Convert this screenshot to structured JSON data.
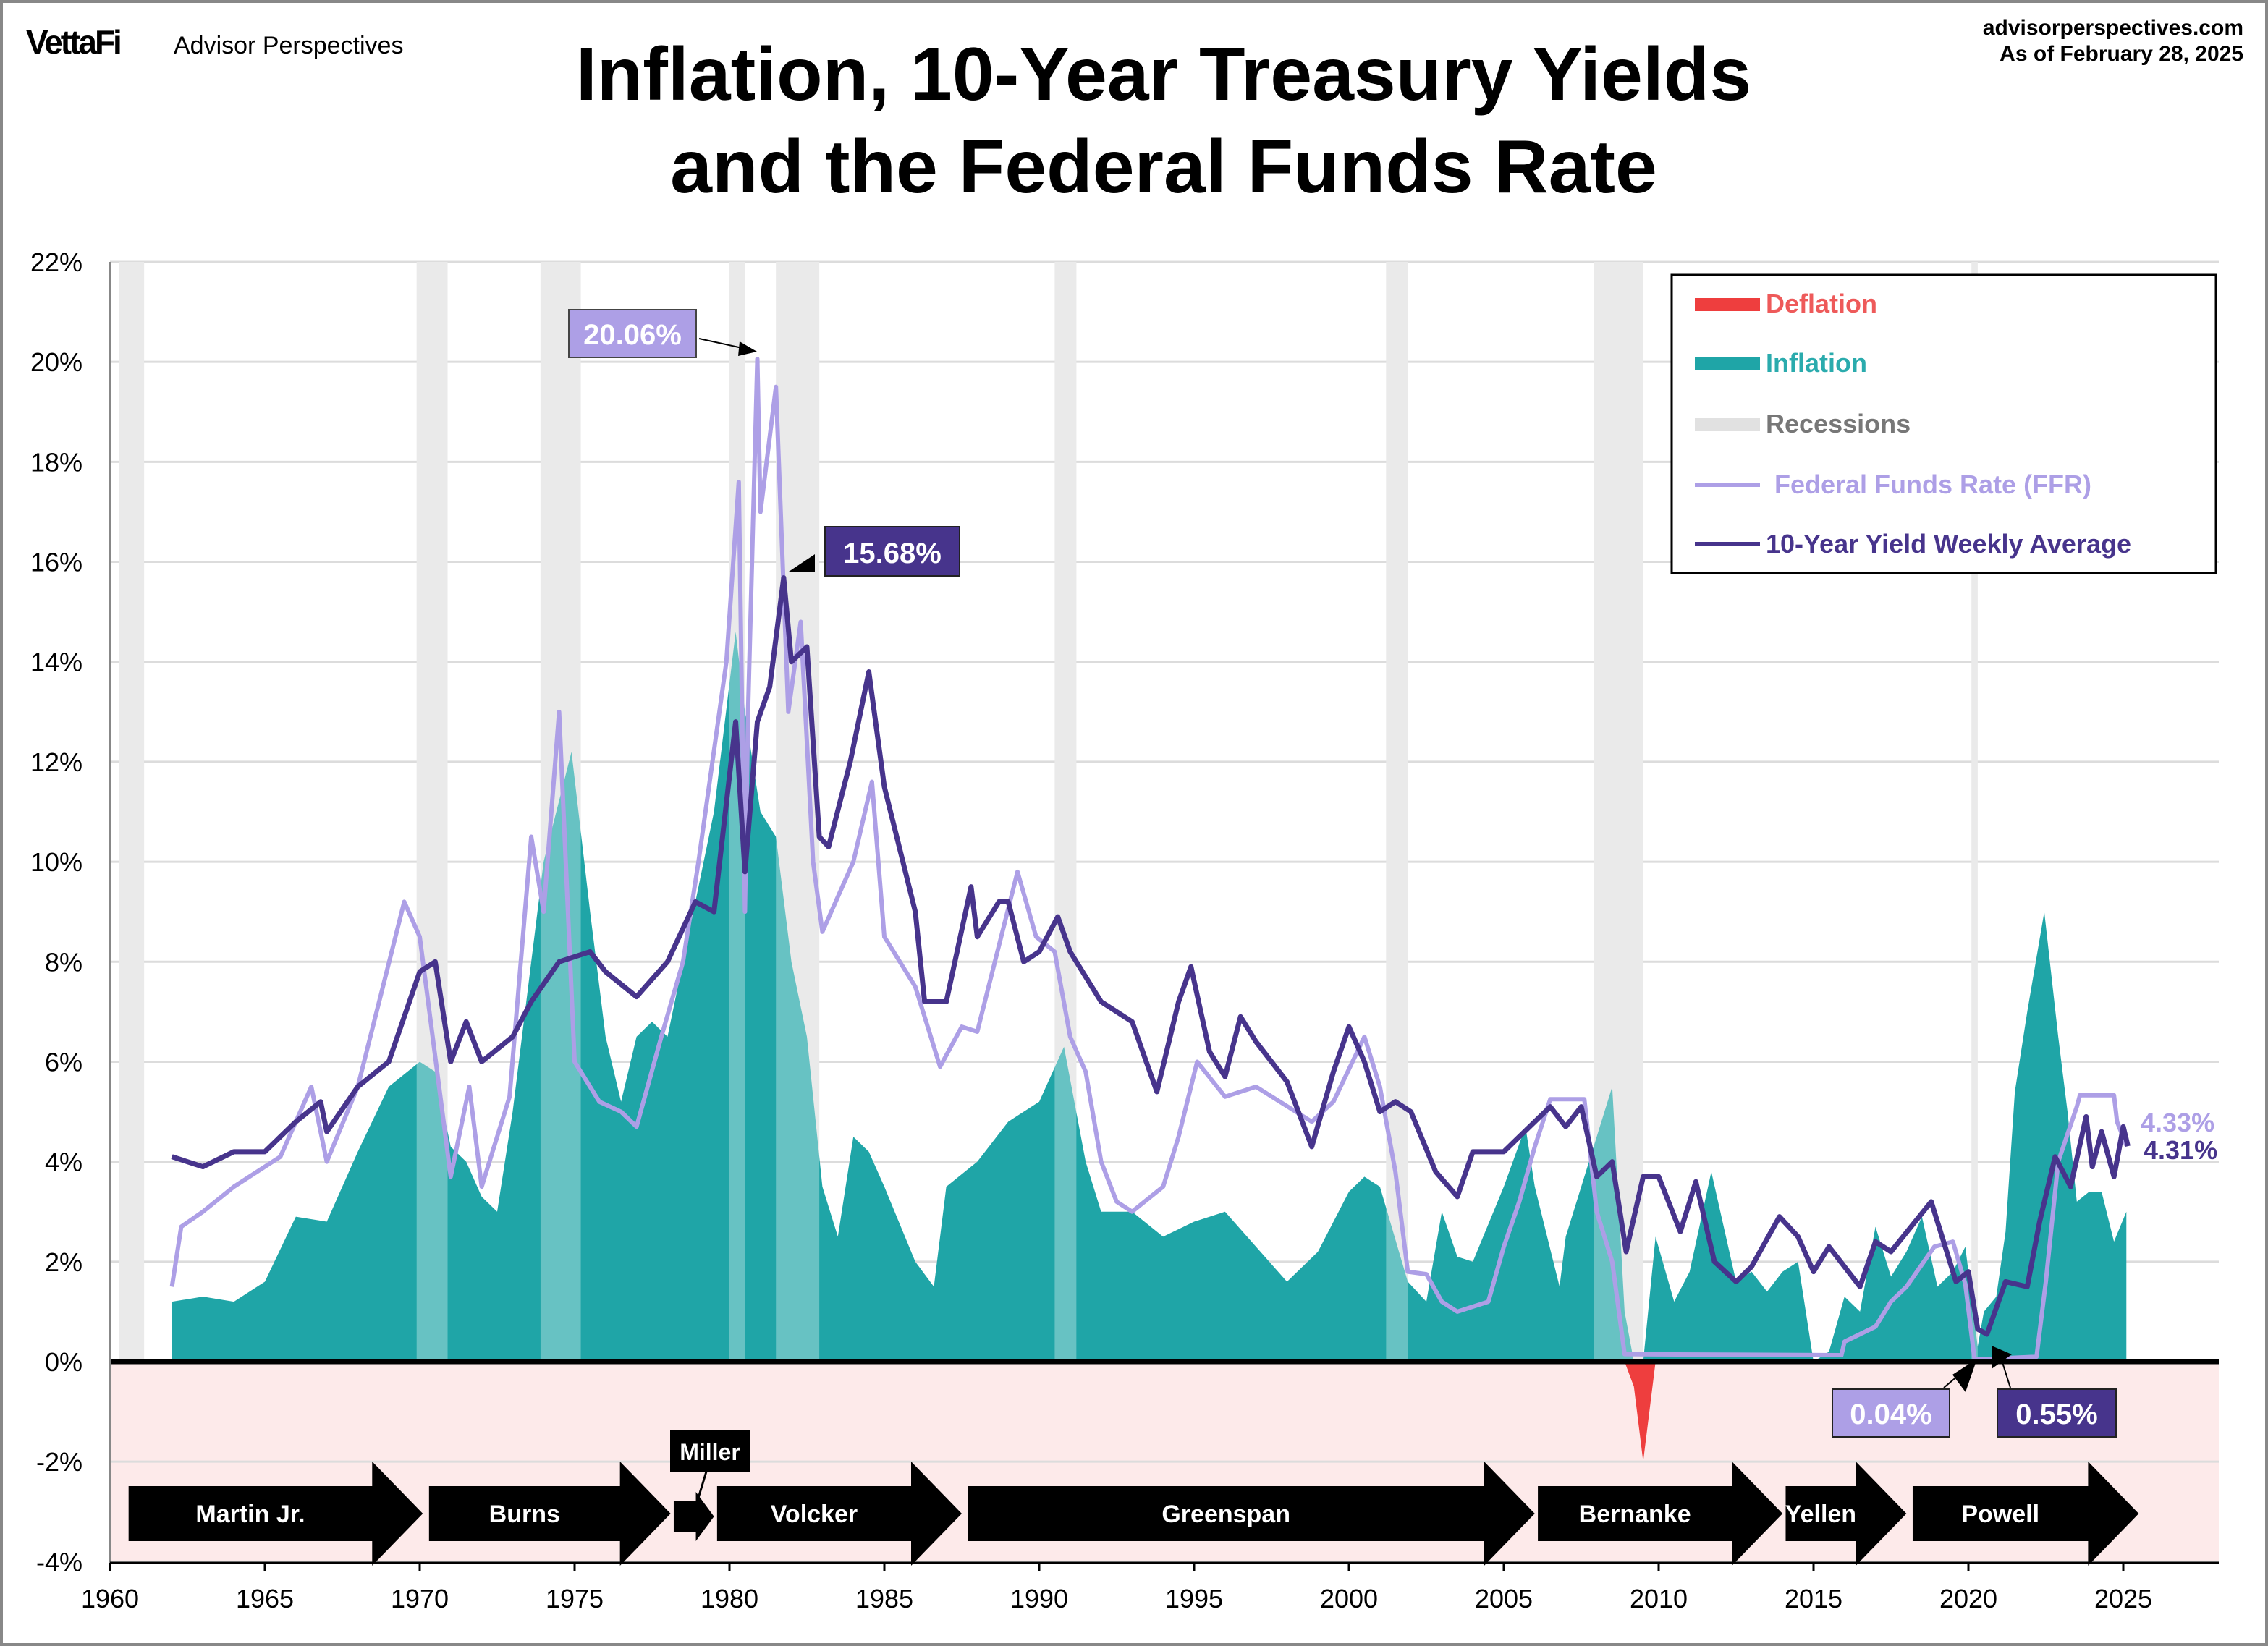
{
  "header": {
    "logo": "VettaFi",
    "brand": "Advisor Perspectives",
    "site": "advisorperspectives.com",
    "as_of": "As of February 28, 2025",
    "title_line1": "Inflation, 10-Year Treasury Yields",
    "title_line2": "and the Federal Funds Rate"
  },
  "legend": {
    "deflation": "Deflation",
    "inflation": "Inflation",
    "recessions": "Recessions",
    "ffr": "Federal Funds Rate (FFR)",
    "ten_year": "10-Year Yield Weekly Average"
  },
  "annotations": {
    "ffr_peak": "20.06%",
    "ten_year_peak": "15.68%",
    "ffr_low": "0.04%",
    "ten_year_low": "0.55%",
    "ffr_last": "4.33%",
    "ten_year_last": "4.31%"
  },
  "colors": {
    "inflation": "#1fa5a7",
    "deflation": "#ee3e3e",
    "recession": "#e1e1e1",
    "ffr": "#ad9fe6",
    "ten_year": "#47348c",
    "negative_zone": "#fdeaea"
  },
  "chart_data": {
    "type": "line",
    "title": "Inflation, 10-Year Treasury Yields and the Federal Funds Rate",
    "xlim": [
      1960,
      2028
    ],
    "ylim": [
      -4,
      22
    ],
    "grid": true,
    "legend_position": "top-right",
    "x_ticks": [
      "1960",
      "1965",
      "1970",
      "1975",
      "1980",
      "1985",
      "1990",
      "1995",
      "2000",
      "2005",
      "2010",
      "2015",
      "2020",
      "2025"
    ],
    "y_ticks": [
      "22%",
      "20%",
      "18%",
      "16%",
      "14%",
      "12%",
      "10%",
      "8%",
      "6%",
      "4%",
      "2%",
      "0%",
      "-2%",
      "-4%"
    ],
    "recessions": [
      [
        1960.3,
        1961.1
      ],
      [
        1969.9,
        1970.9
      ],
      [
        1973.9,
        1975.2
      ],
      [
        1980.0,
        1980.5
      ],
      [
        1981.5,
        1982.9
      ],
      [
        1990.5,
        1991.2
      ],
      [
        2001.2,
        2001.9
      ],
      [
        2007.9,
        2009.5
      ],
      [
        2020.1,
        2020.3
      ]
    ],
    "inflation": {
      "name": "Inflation",
      "x": [
        1962,
        1963,
        1964,
        1965,
        1966,
        1967,
        1968,
        1969,
        1970,
        1970.5,
        1971,
        1971.5,
        1972,
        1972.5,
        1973,
        1973.5,
        1974,
        1974.9,
        1975.5,
        1976,
        1976.5,
        1977,
        1977.5,
        1978,
        1978.5,
        1979,
        1979.5,
        1980.2,
        1980.5,
        1981,
        1981.5,
        1982,
        1982.5,
        1983,
        1983.5,
        1984,
        1984.5,
        1985,
        1986,
        1986.6,
        1987,
        1988,
        1989,
        1990,
        1990.8,
        1991.5,
        1992,
        1993,
        1994,
        1995,
        1996,
        1997,
        1998,
        1999,
        2000,
        2000.5,
        2001,
        2001.9,
        2002.5,
        2003,
        2003.5,
        2004,
        2005,
        2005.7,
        2006,
        2006.8,
        2007,
        2007.9,
        2008.5,
        2008.9,
        2009.2,
        2009.5,
        2009.9,
        2010.5,
        2011,
        2011.7,
        2012.5,
        2013,
        2013.5,
        2014,
        2014.5,
        2015,
        2015.5,
        2016,
        2016.5,
        2017,
        2017.5,
        2018,
        2018.5,
        2019,
        2019.5,
        2019.9,
        2020.3,
        2020.5,
        2020.9,
        2021.2,
        2021.5,
        2021.9,
        2022.45,
        2022.9,
        2023.2,
        2023.5,
        2023.9,
        2024.3,
        2024.7,
        2025.1
      ],
      "values": [
        1.2,
        1.3,
        1.2,
        1.6,
        2.9,
        2.8,
        4.2,
        5.5,
        6.0,
        5.8,
        4.3,
        4.0,
        3.3,
        3.0,
        5.0,
        7.5,
        10.0,
        12.2,
        9.0,
        6.5,
        5.2,
        6.5,
        6.8,
        6.5,
        8.0,
        9.5,
        11.0,
        14.6,
        13.0,
        11.0,
        10.5,
        8.0,
        6.5,
        3.5,
        2.5,
        4.5,
        4.2,
        3.5,
        2.0,
        1.5,
        3.5,
        4.0,
        4.8,
        5.2,
        6.3,
        4.0,
        3.0,
        3.0,
        2.5,
        2.8,
        3.0,
        2.3,
        1.6,
        2.2,
        3.4,
        3.7,
        3.5,
        1.6,
        1.2,
        3.0,
        2.1,
        2.0,
        3.5,
        4.7,
        3.5,
        1.5,
        2.5,
        4.3,
        5.5,
        1.0,
        -0.5,
        -2.0,
        2.5,
        1.2,
        1.8,
        3.8,
        1.6,
        1.8,
        1.4,
        1.8,
        2.0,
        0.0,
        0.2,
        1.3,
        1.0,
        2.7,
        1.7,
        2.2,
        2.9,
        1.5,
        1.8,
        2.3,
        0.3,
        1.0,
        1.3,
        2.6,
        5.4,
        7.0,
        9.0,
        6.5,
        5.0,
        3.2,
        3.4,
        3.4,
        2.4,
        3.0
      ]
    },
    "ffr": {
      "name": "Federal Funds Rate (FFR)",
      "x": [
        1962,
        1962.3,
        1963,
        1964,
        1965.5,
        1966.5,
        1967,
        1968,
        1969.5,
        1970,
        1971,
        1971.6,
        1972,
        1972.9,
        1973.6,
        1974,
        1974.5,
        1975,
        1975.8,
        1976.5,
        1977,
        1977.8,
        1978.5,
        1979,
        1979.9,
        1980.3,
        1980.5,
        1980.6,
        1980.9,
        1981,
        1981.5,
        1981.9,
        1982.3,
        1982.7,
        1983,
        1984,
        1984.6,
        1985,
        1986,
        1986.8,
        1987.5,
        1988,
        1989.3,
        1989.9,
        1990.5,
        1991,
        1991.5,
        1992,
        1992.5,
        1993,
        1994,
        1994.5,
        1995.1,
        1996,
        1997,
        1998.8,
        1999.5,
        2000.5,
        2001,
        2001.5,
        2001.9,
        2002.5,
        2003,
        2003.5,
        2004.5,
        2005,
        2005.5,
        2006,
        2006.5,
        2007.6,
        2008,
        2008.5,
        2008.9,
        2015.9,
        2016,
        2017,
        2017.5,
        2018,
        2018.9,
        2019.5,
        2019.9,
        2020.2,
        2022.2,
        2022.5,
        2022.9,
        2023.5,
        2023.6,
        2024.7,
        2024.8,
        2025.1
      ],
      "values": [
        1.5,
        2.7,
        3.0,
        3.5,
        4.1,
        5.5,
        4.0,
        5.5,
        9.2,
        8.5,
        3.7,
        5.5,
        3.5,
        5.3,
        10.5,
        9.0,
        13.0,
        6.0,
        5.2,
        5.0,
        4.7,
        6.5,
        8.0,
        10.0,
        14.0,
        17.6,
        9.0,
        13.0,
        20.06,
        17.0,
        19.5,
        13.0,
        14.8,
        10.0,
        8.6,
        10.0,
        11.6,
        8.5,
        7.5,
        5.9,
        6.7,
        6.6,
        9.8,
        8.5,
        8.2,
        6.5,
        5.8,
        4.0,
        3.2,
        3.0,
        3.5,
        4.5,
        6.0,
        5.3,
        5.5,
        4.8,
        5.2,
        6.5,
        5.5,
        3.8,
        1.8,
        1.75,
        1.2,
        1.0,
        1.2,
        2.3,
        3.2,
        4.3,
        5.25,
        5.25,
        3.0,
        2.0,
        0.15,
        0.13,
        0.4,
        0.7,
        1.2,
        1.5,
        2.3,
        2.4,
        1.55,
        0.04,
        0.1,
        1.6,
        4.0,
        5.1,
        5.33,
        5.33,
        4.8,
        4.33
      ]
    },
    "ten_year": {
      "name": "10-Year Yield Weekly Average",
      "x": [
        1962,
        1963,
        1964,
        1965,
        1966,
        1966.8,
        1967,
        1968,
        1969,
        1970,
        1970.5,
        1971,
        1971.5,
        1972,
        1973,
        1973.6,
        1974.5,
        1975.5,
        1976,
        1977,
        1978,
        1978.9,
        1979.5,
        1980.2,
        1980.5,
        1980.9,
        1981.3,
        1981.75,
        1982,
        1982.5,
        1982.9,
        1983.2,
        1983.9,
        1984.5,
        1985,
        1986,
        1986.3,
        1987,
        1987.8,
        1988,
        1988.7,
        1989,
        1989.5,
        1990,
        1990.6,
        1991,
        1992,
        1993,
        1993.8,
        1994.5,
        1994.9,
        1995.5,
        1996,
        1996.5,
        1997,
        1998,
        1998.8,
        1999.5,
        2000,
        2000.5,
        2001,
        2001.5,
        2002,
        2002.8,
        2003.5,
        2004,
        2005,
        2006.5,
        2007,
        2007.5,
        2008,
        2008.5,
        2008.95,
        2009.5,
        2010,
        2010.7,
        2011.2,
        2011.8,
        2012.5,
        2013,
        2013.9,
        2014.5,
        2015,
        2015.5,
        2016.5,
        2017,
        2017.5,
        2018.8,
        2019.6,
        2020,
        2020.3,
        2020.6,
        2021.2,
        2021.9,
        2022.3,
        2022.8,
        2023.3,
        2023.8,
        2024.0,
        2024.3,
        2024.7,
        2025.0,
        2025.15
      ],
      "values": [
        4.1,
        3.9,
        4.2,
        4.2,
        4.8,
        5.2,
        4.6,
        5.5,
        6.0,
        7.8,
        8.0,
        6.0,
        6.8,
        6.0,
        6.5,
        7.2,
        8.0,
        8.2,
        7.8,
        7.3,
        8.0,
        9.2,
        9.0,
        12.8,
        9.8,
        12.8,
        13.5,
        15.68,
        14.0,
        14.3,
        10.5,
        10.3,
        12.0,
        13.8,
        11.5,
        9.0,
        7.2,
        7.2,
        9.5,
        8.5,
        9.2,
        9.2,
        8.0,
        8.2,
        8.9,
        8.2,
        7.2,
        6.8,
        5.4,
        7.2,
        7.9,
        6.2,
        5.7,
        6.9,
        6.4,
        5.6,
        4.3,
        5.8,
        6.7,
        6.0,
        5.0,
        5.2,
        5.0,
        3.8,
        3.3,
        4.2,
        4.2,
        5.1,
        4.7,
        5.1,
        3.7,
        4.0,
        2.2,
        3.7,
        3.7,
        2.6,
        3.6,
        2.0,
        1.6,
        1.9,
        2.9,
        2.5,
        1.8,
        2.3,
        1.5,
        2.4,
        2.2,
        3.2,
        1.6,
        1.8,
        0.65,
        0.55,
        1.6,
        1.5,
        2.8,
        4.1,
        3.5,
        4.9,
        3.9,
        4.6,
        3.7,
        4.7,
        4.31
      ]
    },
    "fed_chairs": [
      {
        "name": "Martin Jr.",
        "start": 1960.6,
        "end": 1970.1
      },
      {
        "name": "Burns",
        "start": 1970.3,
        "end": 1978.1
      },
      {
        "name": "Miller",
        "start": 1978.2,
        "end": 1979.5
      },
      {
        "name": "Volcker",
        "start": 1979.6,
        "end": 1987.5
      },
      {
        "name": "Greenspan",
        "start": 1987.7,
        "end": 2006.0
      },
      {
        "name": "Bernanke",
        "start": 2006.1,
        "end": 2014.0
      },
      {
        "name": "Yellen",
        "start": 2014.1,
        "end": 2018.0
      },
      {
        "name": "Powell",
        "start": 2018.2,
        "end": 2025.5
      }
    ]
  }
}
